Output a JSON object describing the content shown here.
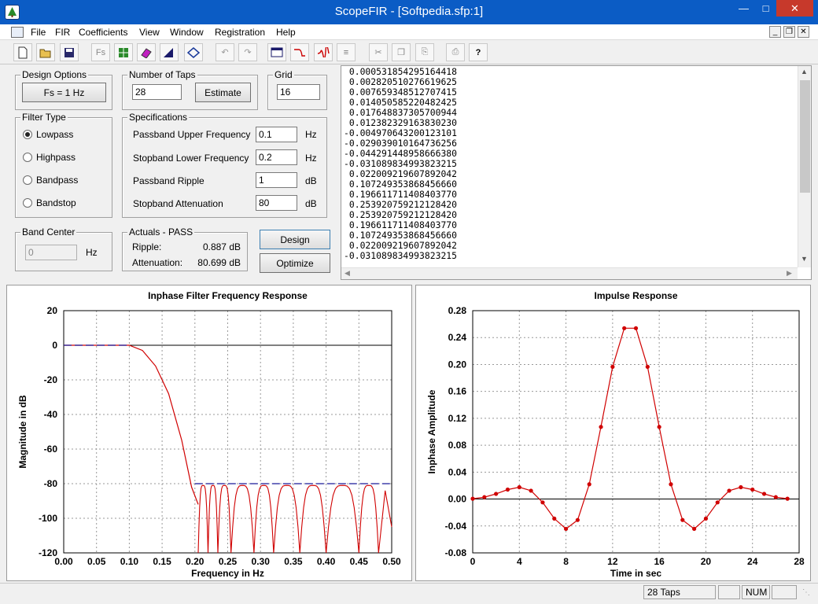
{
  "window": {
    "title": "ScopeFIR - [Softpedia.sfp:1]"
  },
  "menu": [
    "File",
    "FIR",
    "Coefficients",
    "View",
    "Window",
    "Registration",
    "Help"
  ],
  "toolbar": {
    "icons": [
      "new-icon",
      "open-icon",
      "save-icon",
      "fs-icon",
      "grid-icon",
      "eraser-icon",
      "scale-icon",
      "transform-icon",
      "undo-icon",
      "redo-icon",
      "window-icon",
      "freq-response-icon",
      "impulse-icon",
      "coef-list-icon",
      "cut-icon",
      "copy-icon",
      "paste-icon",
      "print-icon",
      "help-icon"
    ],
    "fs_label": "Fs"
  },
  "design_options": {
    "legend": "Design Options",
    "fs_button": "Fs = 1 Hz"
  },
  "taps": {
    "legend": "Number of Taps",
    "value": "28",
    "estimate": "Estimate"
  },
  "grid": {
    "legend": "Grid",
    "value": "16"
  },
  "filter_type": {
    "legend": "Filter Type",
    "options": [
      "Lowpass",
      "Highpass",
      "Bandpass",
      "Bandstop"
    ],
    "selected": "Lowpass"
  },
  "specs": {
    "legend": "Specifications",
    "rows": [
      {
        "label": "Passband Upper Frequency",
        "value": "0.1",
        "unit": "Hz"
      },
      {
        "label": "Stopband Lower Frequency",
        "value": "0.2",
        "unit": "Hz"
      },
      {
        "label": "Passband Ripple",
        "value": "1",
        "unit": "dB"
      },
      {
        "label": "Stopband Attenuation",
        "value": "80",
        "unit": "dB"
      }
    ]
  },
  "band_center": {
    "legend": "Band Center",
    "value": "0",
    "unit": "Hz"
  },
  "actuals": {
    "legend": "Actuals - PASS",
    "ripple_label": "Ripple:",
    "ripple_value": "0.887 dB",
    "atten_label": "Attenuation:",
    "atten_value": "80.699 dB"
  },
  "buttons": {
    "design": "Design",
    "optimize": "Optimize"
  },
  "coefficients": [
    "0.000531854295164418",
    "0.002820510276619625",
    "0.007659348512707415",
    "0.014050585220482425",
    "0.017648837305700944",
    "0.012382329163830230",
    "-0.004970643200123101",
    "-0.029039010164736256",
    "-0.044291448958666380",
    "-0.031089834993823215",
    "0.022009219607892042",
    "0.107249353868456660",
    "0.196611711408403770",
    "0.253920759212128420",
    "0.253920759212128420",
    "0.196611711408403770",
    "0.107249353868456660",
    "0.022009219607892042",
    "-0.031089834993823215"
  ],
  "status": {
    "taps": "28 Taps",
    "num": "NUM"
  },
  "colors": {
    "accent": "#0b5cc5",
    "curve": "#d00000",
    "spec": "#1a1a9a"
  },
  "chart_data": [
    {
      "type": "line",
      "title": "Inphase Filter Frequency Response",
      "xlabel": "Frequency in Hz",
      "ylabel": "Magnitude in dB",
      "xlim": [
        0,
        0.5
      ],
      "ylim": [
        -120,
        20
      ],
      "xticks": [
        "0.00",
        "0.05",
        "0.10",
        "0.15",
        "0.20",
        "0.25",
        "0.30",
        "0.35",
        "0.40",
        "0.45",
        "0.50"
      ],
      "yticks": [
        "20",
        "0",
        "-20",
        "-40",
        "-60",
        "-80",
        "-100",
        "-120"
      ],
      "grid": true,
      "series": [
        {
          "values_note": "",
          "x": [
            0,
            0.02,
            0.04,
            0.06,
            0.08,
            0.1,
            0.12,
            0.14,
            0.16,
            0.18,
            0.195,
            0.205
          ],
          "y": [
            0,
            0,
            0,
            0,
            0,
            0,
            -3,
            -12,
            -28,
            -55,
            -82,
            -92
          ]
        }
      ],
      "spec_lines": [
        {
          "x": [
            0,
            0.1
          ],
          "y": 0
        },
        {
          "x": [
            0.2,
            0.5
          ],
          "y": -80
        }
      ],
      "stopband_nulls": [
        0.205,
        0.22,
        0.235,
        0.255,
        0.29,
        0.32,
        0.36,
        0.4,
        0.45,
        0.48
      ],
      "stopband_peak_db": -81
    },
    {
      "type": "line",
      "title": "Impulse Response",
      "xlabel": "Time in sec",
      "ylabel": "Inphase Amplitude",
      "xlim": [
        0,
        28
      ],
      "ylim": [
        -0.08,
        0.28
      ],
      "xticks": [
        "0",
        "4",
        "8",
        "12",
        "16",
        "20",
        "24",
        "28"
      ],
      "yticks": [
        "0.28",
        "0.24",
        "0.20",
        "0.16",
        "0.12",
        "0.08",
        "0.04",
        "0.00",
        "-0.04",
        "-0.08"
      ],
      "grid": true,
      "x": [
        0,
        1,
        2,
        3,
        4,
        5,
        6,
        7,
        8,
        9,
        10,
        11,
        12,
        13,
        14,
        15,
        16,
        17,
        18,
        19,
        20,
        21,
        22,
        23,
        24,
        25,
        26,
        27
      ],
      "y": [
        0.0005,
        0.0028,
        0.0077,
        0.0141,
        0.0176,
        0.0124,
        -0.005,
        -0.029,
        -0.0443,
        -0.0311,
        0.022,
        0.1072,
        0.1966,
        0.2539,
        0.2539,
        0.1966,
        0.1072,
        0.022,
        -0.0311,
        -0.0443,
        -0.029,
        -0.005,
        0.0124,
        0.0176,
        0.0141,
        0.0077,
        0.0028,
        0.0005
      ]
    }
  ]
}
